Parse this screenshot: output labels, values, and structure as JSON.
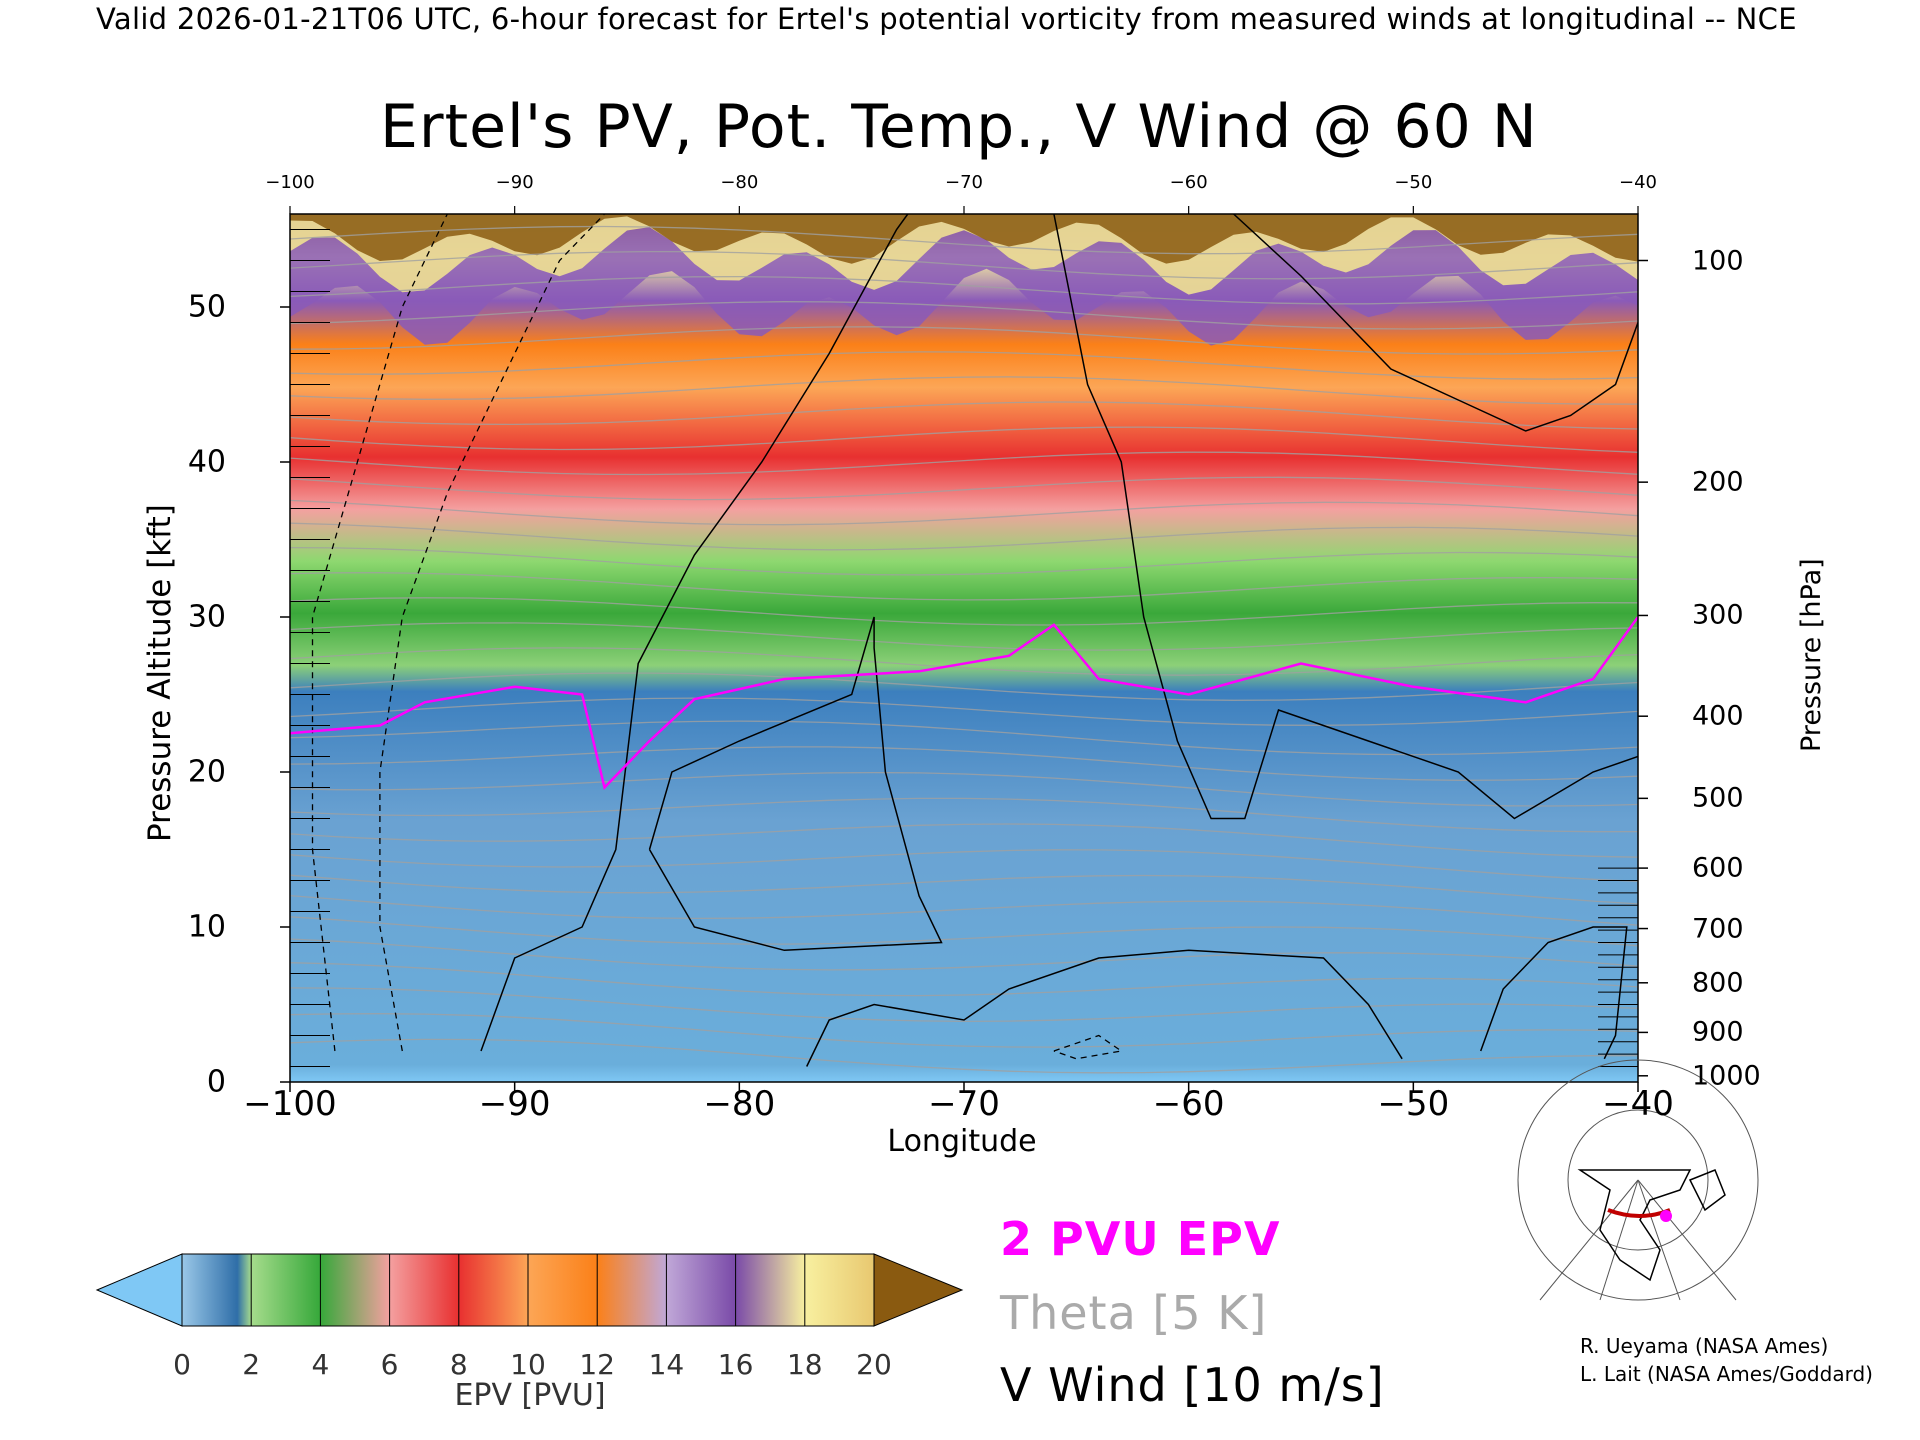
{
  "header": "Valid 2026-01-21T06 UTC, 6-hour forecast for Ertel's potential vorticity from measured winds at longitudinal -- NCE",
  "chart_data": {
    "type": "heatmap",
    "title": "Ertel's PV, Pot. Temp., V Wind @ 60 N",
    "xlabel": "Longitude",
    "ylabel_left": "Pressure Altitude [kft]",
    "ylabel_right": "Pressure [hPa]",
    "xlim": [
      -100,
      -40
    ],
    "ylim": [
      0,
      56
    ],
    "x_ticks": [
      "−100",
      "−90",
      "−80",
      "−70",
      "−60",
      "−50",
      "−40"
    ],
    "x_tick_values": [
      -100,
      -90,
      -80,
      -70,
      -60,
      -50,
      -40
    ],
    "x_top_ticks": [
      "−100",
      "−90",
      "−80",
      "−70",
      "−60",
      "−50",
      "−40"
    ],
    "y_left_ticks": [
      "0",
      "10",
      "20",
      "30",
      "40",
      "50"
    ],
    "y_left_values": [
      0,
      10,
      20,
      30,
      40,
      50
    ],
    "y_right_ticks": [
      "100",
      "200",
      "300",
      "400",
      "500",
      "600",
      "700",
      "800",
      "900",
      "1000"
    ],
    "y_right_kft": [
      53.0,
      38.7,
      30.1,
      23.6,
      18.3,
      13.8,
      9.9,
      6.4,
      3.2,
      0.4
    ],
    "pv_levels_kft": [
      {
        "range": [
          0,
          1
        ],
        "pv": "<0"
      },
      {
        "range": [
          1,
          26
        ],
        "pv": "0-2"
      },
      {
        "range": [
          26,
          30
        ],
        "pv": "2-4"
      },
      {
        "range": [
          30,
          34
        ],
        "pv": "4-6"
      },
      {
        "range": [
          34,
          38
        ],
        "pv": "6-8"
      },
      {
        "range": [
          38,
          44
        ],
        "pv": "8-10"
      },
      {
        "range": [
          44,
          47
        ],
        "pv": "10-12"
      },
      {
        "range": [
          47,
          50
        ],
        "pv": "12-14"
      },
      {
        "range": [
          50,
          53
        ],
        "pv": "14-18"
      },
      {
        "range": [
          53,
          56
        ],
        "pv": "18-20"
      }
    ],
    "pv2_contour": [
      {
        "lon": -100,
        "kft": 22.5
      },
      {
        "lon": -96,
        "kft": 23.0
      },
      {
        "lon": -94,
        "kft": 24.5
      },
      {
        "lon": -90,
        "kft": 25.5
      },
      {
        "lon": -87,
        "kft": 25.0
      },
      {
        "lon": -86,
        "kft": 19.0
      },
      {
        "lon": -84,
        "kft": 22.0
      },
      {
        "lon": -82,
        "kft": 24.7
      },
      {
        "lon": -78,
        "kft": 26.0
      },
      {
        "lon": -72,
        "kft": 26.5
      },
      {
        "lon": -68,
        "kft": 27.5
      },
      {
        "lon": -66,
        "kft": 29.5
      },
      {
        "lon": -64,
        "kft": 26.0
      },
      {
        "lon": -60,
        "kft": 25.0
      },
      {
        "lon": -55,
        "kft": 27.0
      },
      {
        "lon": -50,
        "kft": 25.5
      },
      {
        "lon": -45,
        "kft": 24.5
      },
      {
        "lon": -42,
        "kft": 26.0
      },
      {
        "lon": -40,
        "kft": 30.0
      }
    ],
    "colorbar": {
      "title": "EPV [PVU]",
      "ticks": [
        "0",
        "2",
        "4",
        "6",
        "8",
        "10",
        "12",
        "14",
        "16",
        "18",
        "20"
      ],
      "under_color": "#7fc8f5",
      "over_color": "#8a5a10",
      "colors": [
        "#4d8fc4",
        "#a6dc8c",
        "#36a83a",
        "#f4a0a0",
        "#e83030",
        "#fca656",
        "#fb8018",
        "#c0a8d8",
        "#7a4aa8",
        "#f8f0a0"
      ]
    },
    "legend": {
      "pvu": "2 PVU EPV",
      "theta": "Theta [5 K]",
      "vwind": "V Wind [10 m/s]"
    },
    "colors": {
      "pv2_line": "#ff00ff",
      "theta_line": "#a0a0a0",
      "vwind_line": "#000000"
    }
  },
  "credits": {
    "line1": "R. Ueyama (NASA Ames)",
    "line2": "L. Lait (NASA Ames/Goddard)"
  },
  "map_inset": {
    "icon": "polar-map-icon",
    "marker_color": "#ff00ff",
    "section_color": "#c00000"
  }
}
